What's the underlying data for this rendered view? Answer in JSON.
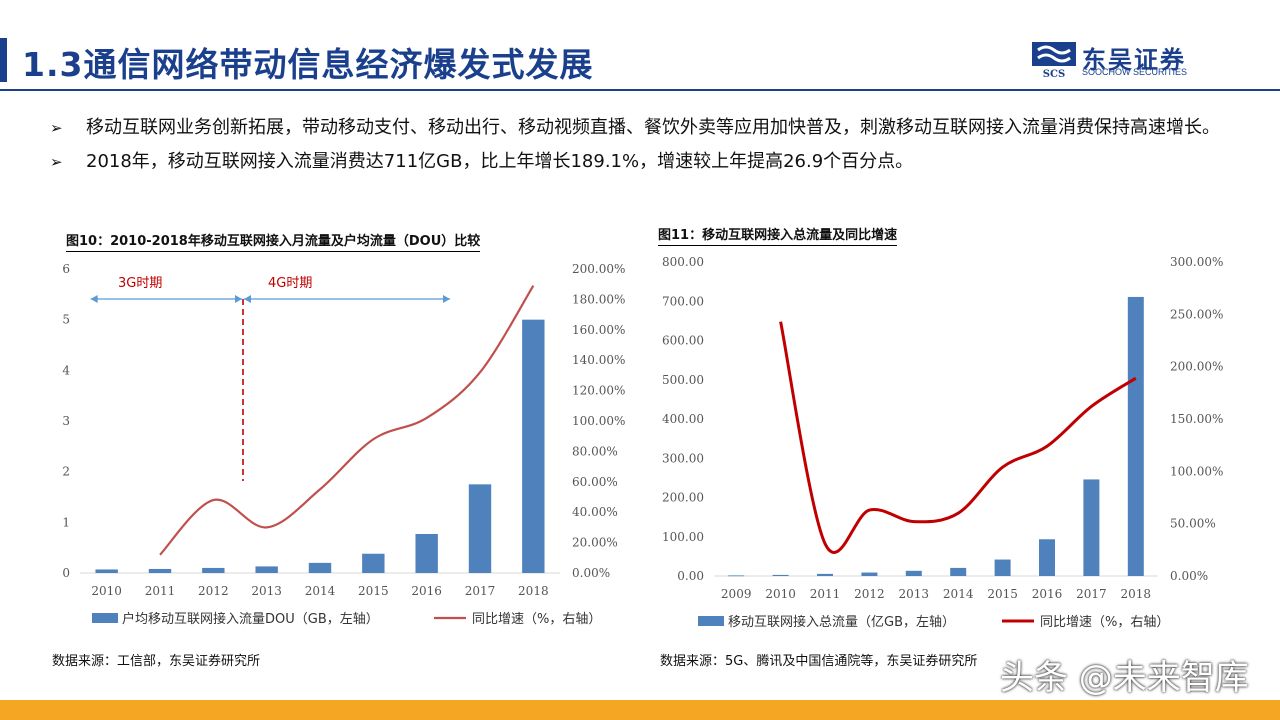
{
  "header": {
    "title": "1.3通信网络带动信息经济爆发式发展",
    "logo_cn": "东吴证券",
    "logo_en": "SOOCHOW SECURITIES",
    "logo_mark": "SCS"
  },
  "bullets": [
    "移动互联网业务创新拓展，带动移动支付、移动出行、移动视频直播、餐饮外卖等应用加快普及，刺激移动互联网接入流量消费保持高速增长。",
    "2018年，移动互联网接入流量消费达711亿GB，比上年增长189.1%，增速较上年提高26.9个百分点。"
  ],
  "colors": {
    "brand": "#1a3f8c",
    "bar": "#4f81bd",
    "line_left": "#c0504d",
    "line_right": "#c00000",
    "footer": "#f5a623"
  },
  "chart_data": [
    {
      "type": "bar+line",
      "title": "图10：2010-2018年移动互联网接入月流量及户均流量（DOU）比较",
      "source": "数据来源：工信部，东吴证券研究所",
      "categories": [
        "2010",
        "2011",
        "2012",
        "2013",
        "2014",
        "2015",
        "2016",
        "2017",
        "2018"
      ],
      "y_left_ticks": [
        "0",
        "1",
        "2",
        "3",
        "4",
        "5",
        "6"
      ],
      "y_left_range": [
        0,
        6
      ],
      "y_right_ticks": [
        "0.00%",
        "20.00%",
        "40.00%",
        "60.00%",
        "80.00%",
        "100.00%",
        "120.00%",
        "140.00%",
        "160.00%",
        "180.00%",
        "200.00%"
      ],
      "y_right_range": [
        0,
        200
      ],
      "series": [
        {
          "name": "户均移动互联网接入流量DOU（GB，左轴）",
          "kind": "bar",
          "axis": "left",
          "values": [
            0.07,
            0.08,
            0.1,
            0.13,
            0.2,
            0.38,
            0.77,
            1.75,
            5.0
          ]
        },
        {
          "name": "同比增速（%，右轴）",
          "kind": "line",
          "axis": "right",
          "values": [
            null,
            12,
            48,
            30,
            55,
            88,
            102,
            132,
            189
          ]
        }
      ],
      "annotations": {
        "period_3g": "3G时期",
        "period_4g": "4G时期"
      }
    },
    {
      "type": "bar+line",
      "title": "图11：移动互联网接入总流量及同比增速",
      "source": "数据来源：5G、腾讯及中国信通院等，东吴证券研究所",
      "categories": [
        "2009",
        "2010",
        "2011",
        "2012",
        "2013",
        "2014",
        "2015",
        "2016",
        "2017",
        "2018"
      ],
      "y_left_ticks": [
        "0.00",
        "100.00",
        "200.00",
        "300.00",
        "400.00",
        "500.00",
        "600.00",
        "700.00",
        "800.00"
      ],
      "y_left_range": [
        0,
        800
      ],
      "y_right_ticks": [
        "0.00%",
        "50.00%",
        "100.00%",
        "150.00%",
        "200.00%",
        "250.00%",
        "300.00%"
      ],
      "y_right_range": [
        0,
        300
      ],
      "series": [
        {
          "name": "移动互联网接入总流量（亿GB，左轴）",
          "kind": "bar",
          "axis": "left",
          "values": [
            1.5,
            2.8,
            5.4,
            8.8,
            13.2,
            20.6,
            41.9,
            93.6,
            246,
            711
          ]
        },
        {
          "name": "同比增速（%，右轴）",
          "kind": "line",
          "axis": "right",
          "values": [
            null,
            243,
            31,
            63,
            52,
            60,
            104,
            124,
            162,
            189
          ]
        }
      ]
    }
  ],
  "watermark": "头条 @未来智库"
}
